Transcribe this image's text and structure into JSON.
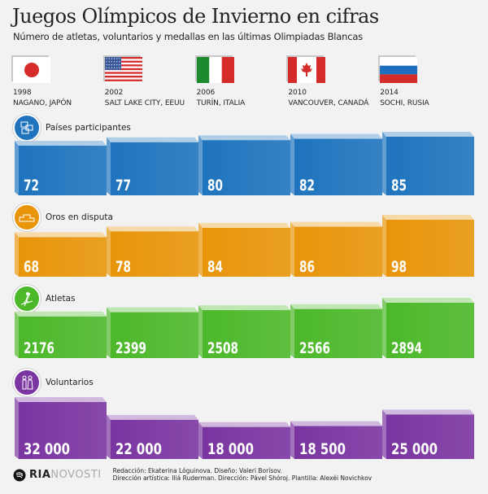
{
  "title": "Juegos Olímpicos de Invierno en cifras",
  "subtitle": "Número de atletas, voluntarios y medallas en las últimas Olimpiadas Blancas",
  "games": [
    {
      "year": "1998",
      "city": "NAGANO, JAPÓN",
      "flag": "japan"
    },
    {
      "year": "2002",
      "city": "SALT LAKE CITY, EEUU",
      "flag": "usa"
    },
    {
      "year": "2006",
      "city": "TURÍN, ITALIA",
      "flag": "italy"
    },
    {
      "year": "2010",
      "city": "VANCOUVER, CANADÁ",
      "flag": "canada"
    },
    {
      "year": "2014",
      "city": "SOCHI, RUSIA",
      "flag": "russia"
    }
  ],
  "chart_data": [
    {
      "type": "bar",
      "title": "Países participantes",
      "icon": "flags-icon",
      "color": "#1f74bd",
      "categories": [
        "1998",
        "2002",
        "2006",
        "2010",
        "2014"
      ],
      "values": [
        72,
        77,
        80,
        82,
        85
      ],
      "labels": [
        "72",
        "77",
        "80",
        "82",
        "85"
      ]
    },
    {
      "type": "bar",
      "title": "Oros en disputa",
      "icon": "podium-icon",
      "color": "#e8950a",
      "categories": [
        "1998",
        "2002",
        "2006",
        "2010",
        "2014"
      ],
      "values": [
        68,
        78,
        84,
        86,
        98
      ],
      "labels": [
        "68",
        "78",
        "84",
        "86",
        "98"
      ]
    },
    {
      "type": "bar",
      "title": "Atletas",
      "icon": "skier-icon",
      "color": "#4cb82a",
      "categories": [
        "1998",
        "2002",
        "2006",
        "2010",
        "2014"
      ],
      "values": [
        2176,
        2399,
        2508,
        2566,
        2894
      ],
      "labels": [
        "2176",
        "2399",
        "2508",
        "2566",
        "2894"
      ]
    },
    {
      "type": "bar",
      "title": "Voluntarios",
      "icon": "volunteers-icon",
      "color": "#7a35a0",
      "categories": [
        "1998",
        "2002",
        "2006",
        "2010",
        "2014"
      ],
      "values": [
        32000,
        22000,
        18000,
        18500,
        25000
      ],
      "labels": [
        "32 000",
        "22 000",
        "18 000",
        "18 500",
        "25 000"
      ]
    }
  ],
  "footer": {
    "logo": "RIA NOVOSTI",
    "logo_part1": "RIA",
    "logo_part2": "NOVOSTI",
    "credits_line1": "Redacción: Ekaterina Lóguinova. Diseño: Valeri Borísov.",
    "credits_line2": "Dirección artística: Iliá Ruderman. Dirección: Pável Shóroj. Plantilla: Alexéi Novichkov"
  }
}
